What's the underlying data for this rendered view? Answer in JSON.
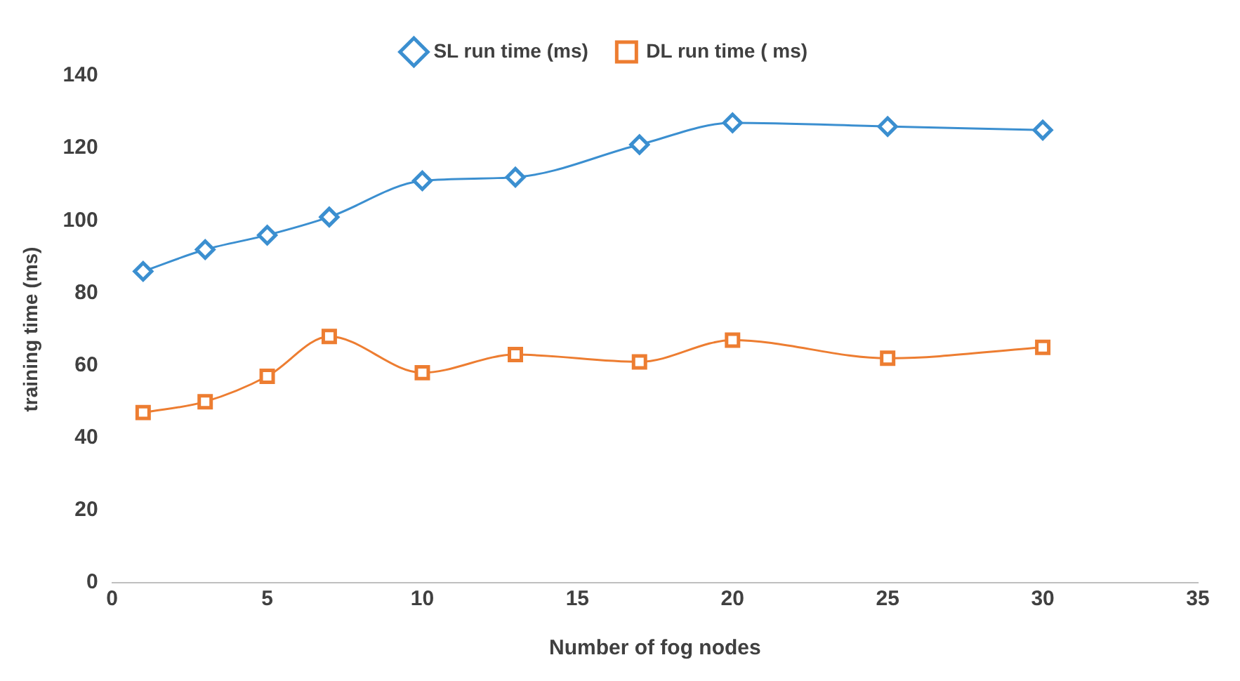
{
  "chart_data": {
    "type": "line",
    "xlabel": "Number of fog nodes",
    "ylabel": "training time (ms)",
    "x": [
      1,
      3,
      5,
      7,
      10,
      13,
      17,
      20,
      25,
      30
    ],
    "series": [
      {
        "name": "SL run time (ms)",
        "color": "#3b8fd0",
        "marker": "diamond",
        "values": [
          86,
          92,
          96,
          101,
          111,
          112,
          121,
          127,
          126,
          125
        ]
      },
      {
        "name": "DL run time ( ms)",
        "color": "#ed7d31",
        "marker": "square",
        "values": [
          47,
          50,
          57,
          68,
          58,
          63,
          61,
          67,
          62,
          65
        ]
      }
    ],
    "xlim": [
      0,
      35
    ],
    "xticks": [
      0,
      5,
      10,
      15,
      20,
      25,
      30,
      35
    ],
    "ylim": [
      0,
      140
    ],
    "yticks": [
      0,
      20,
      40,
      60,
      80,
      100,
      120,
      140
    ],
    "grid": false,
    "legend": "top"
  }
}
